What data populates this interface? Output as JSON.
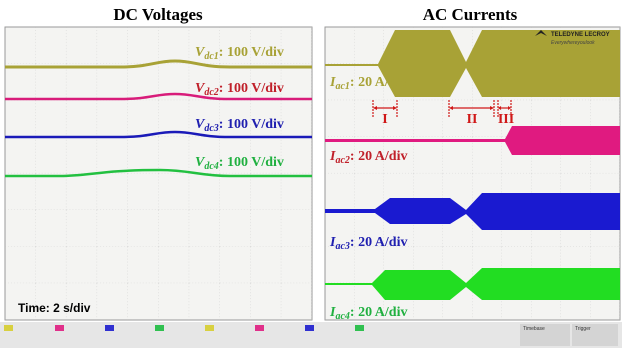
{
  "left_panel": {
    "title": "DC Voltages",
    "labels": [
      {
        "symbol": "V",
        "subscript": "dc1",
        "scale": ": 100 V/div"
      },
      {
        "symbol": "V",
        "subscript": "dc2",
        "scale": ": 100 V/div"
      },
      {
        "symbol": "V",
        "subscript": "dc3",
        "scale": ": 100 V/div"
      },
      {
        "symbol": "V",
        "subscript": "dc4",
        "scale": ": 100 V/div"
      }
    ],
    "time_scale": "Time: 2 s/div"
  },
  "right_panel": {
    "title": "AC Currents",
    "logo": {
      "brand": "TELEDYNE LECROY",
      "tagline": "Everywhereyoulook"
    },
    "labels": [
      {
        "symbol": "I",
        "subscript": "ac1",
        "scale": ": 20 A/div"
      },
      {
        "symbol": "I",
        "subscript": "ac2",
        "scale": ": 20 A/div"
      },
      {
        "symbol": "I",
        "subscript": "ac3",
        "scale": ": 20 A/div"
      },
      {
        "symbol": "I",
        "subscript": "ac4",
        "scale": ": 20 A/div"
      }
    ],
    "intervals": [
      "I",
      "II",
      "III"
    ]
  },
  "status_bar": {
    "timebase": "Timebase",
    "trigger": "Trigger"
  }
}
